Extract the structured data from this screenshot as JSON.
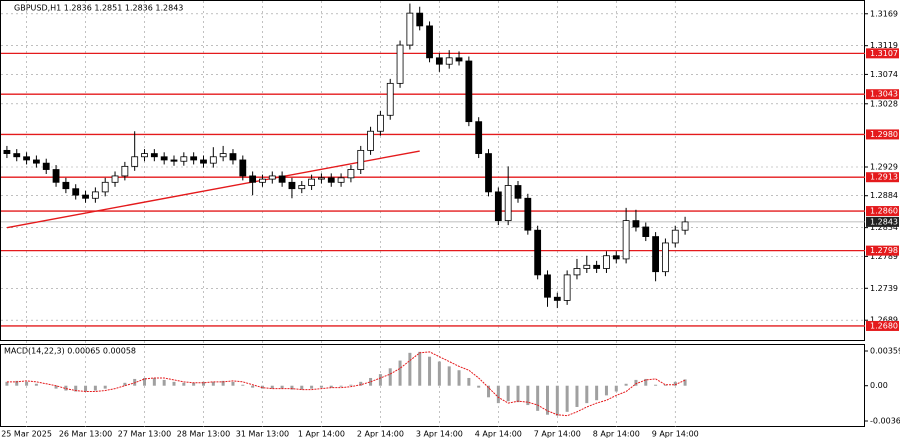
{
  "chart_data": [
    {
      "type": "candlestick",
      "title": "GBPUSD,H1  1.2836 1.2851 1.2836 1.2843",
      "categories": [
        null,
        null,
        "25 Mar 2025",
        null,
        null,
        null,
        null,
        null,
        "26 Mar 13:00",
        null,
        null,
        null,
        null,
        null,
        "27 Mar 13:00",
        null,
        null,
        null,
        null,
        null,
        "28 Mar 13:00",
        null,
        null,
        null,
        null,
        null,
        "31 Mar 13:00",
        null,
        null,
        null,
        null,
        null,
        "1 Apr 14:00",
        null,
        null,
        null,
        null,
        null,
        "2 Apr 14:00",
        null,
        null,
        null,
        null,
        null,
        "3 Apr 14:00",
        null,
        null,
        null,
        null,
        null,
        "4 Apr 14:00",
        null,
        null,
        null,
        null,
        null,
        "7 Apr 14:00",
        null,
        null,
        null,
        null,
        null,
        "8 Apr 14:00",
        null,
        null,
        null,
        null,
        null,
        "9 Apr 14:00",
        null
      ],
      "open": [
        1.2955,
        1.295,
        1.2945,
        1.294,
        1.2935,
        1.2925,
        1.2905,
        1.2895,
        1.2885,
        1.288,
        1.289,
        1.2905,
        1.2915,
        1.293,
        1.2945,
        1.295,
        1.2945,
        1.294,
        1.2938,
        1.2945,
        1.294,
        1.2935,
        1.2945,
        1.295,
        1.294,
        1.2915,
        1.2905,
        1.291,
        1.2915,
        1.2905,
        1.2895,
        1.29,
        1.291,
        1.2912,
        1.2905,
        1.2912,
        1.2925,
        1.2955,
        1.2985,
        1.301,
        1.306,
        1.312,
        1.317,
        1.315,
        1.31,
        1.309,
        1.31,
        1.3095,
        1.3,
        1.295,
        1.289,
        1.2845,
        1.29,
        1.288,
        1.283,
        1.276,
        1.2725,
        1.272,
        1.276,
        1.277,
        1.2775,
        1.277,
        1.279,
        1.2785,
        1.2845,
        1.2835,
        1.282,
        1.2765,
        1.281,
        1.283
      ],
      "high": [
        1.2962,
        1.2957,
        1.2952,
        1.2947,
        1.2942,
        1.2932,
        1.2912,
        1.2902,
        1.2892,
        1.2897,
        1.2912,
        1.2922,
        1.2937,
        1.2985,
        1.2957,
        1.2957,
        1.2952,
        1.2947,
        1.2952,
        1.2952,
        1.2947,
        1.296,
        1.2962,
        1.2957,
        1.2947,
        1.2922,
        1.2917,
        1.2922,
        1.2922,
        1.2912,
        1.2907,
        1.2917,
        1.2919,
        1.2919,
        1.2919,
        1.2932,
        1.2962,
        1.2992,
        1.3017,
        1.3067,
        1.3127,
        1.3185,
        1.318,
        1.3157,
        1.3107,
        1.3112,
        1.311,
        1.3102,
        1.3007,
        1.2957,
        1.2897,
        1.293,
        1.2907,
        1.2887,
        1.2837,
        1.2767,
        1.2732,
        1.2767,
        1.2785,
        1.279,
        1.2782,
        1.2797,
        1.2797,
        1.2865,
        1.2862,
        1.2842,
        1.2827,
        1.2817,
        1.2837,
        1.2851
      ],
      "low": [
        1.2943,
        1.2938,
        1.2933,
        1.2928,
        1.2918,
        1.2898,
        1.2888,
        1.2878,
        1.2873,
        1.2873,
        1.2883,
        1.2898,
        1.2908,
        1.2923,
        1.2938,
        1.2938,
        1.2933,
        1.2931,
        1.2931,
        1.2933,
        1.2928,
        1.2928,
        1.2938,
        1.2933,
        1.2908,
        1.2885,
        1.2898,
        1.2903,
        1.2898,
        1.288,
        1.2888,
        1.2893,
        1.2903,
        1.2898,
        1.2898,
        1.2905,
        1.2918,
        1.2948,
        1.2978,
        1.3003,
        1.3053,
        1.3113,
        1.3143,
        1.3093,
        1.3078,
        1.3083,
        1.3088,
        1.2993,
        1.2943,
        1.2883,
        1.2838,
        1.2838,
        1.2873,
        1.2823,
        1.2753,
        1.271,
        1.2708,
        1.2713,
        1.2753,
        1.2763,
        1.2763,
        1.2763,
        1.2778,
        1.2778,
        1.2828,
        1.2813,
        1.275,
        1.2758,
        1.2803,
        1.2823
      ],
      "close": [
        1.295,
        1.2945,
        1.294,
        1.2935,
        1.2925,
        1.2905,
        1.2895,
        1.2885,
        1.288,
        1.289,
        1.2905,
        1.2915,
        1.293,
        1.2945,
        1.295,
        1.2945,
        1.294,
        1.2938,
        1.2945,
        1.294,
        1.2935,
        1.2945,
        1.295,
        1.294,
        1.2915,
        1.2905,
        1.291,
        1.2915,
        1.2905,
        1.2895,
        1.29,
        1.291,
        1.2912,
        1.2905,
        1.2912,
        1.2925,
        1.2955,
        1.2985,
        1.301,
        1.306,
        1.312,
        1.317,
        1.315,
        1.31,
        1.309,
        1.31,
        1.3095,
        1.3,
        1.295,
        1.289,
        1.2845,
        1.29,
        1.288,
        1.283,
        1.276,
        1.2725,
        1.272,
        1.276,
        1.277,
        1.2775,
        1.277,
        1.279,
        1.2785,
        1.2845,
        1.2835,
        1.282,
        1.2765,
        1.281,
        1.283,
        1.2843
      ],
      "ylim": [
        1.2658,
        1.3189
      ],
      "yticks": [
        1.3169,
        1.3119,
        1.3074,
        1.3028,
        1.2929,
        1.2884,
        1.2834,
        1.2789,
        1.2739,
        1.2689
      ],
      "levels": [
        1.3107,
        1.3043,
        {
          "value": 1.298,
          "label": "1.2980"
        },
        1.2913,
        {
          "value": 1.286,
          "label": "1.2860"
        },
        1.2798,
        {
          "value": 1.268,
          "label": "1.2680"
        }
      ],
      "level_color": "#e41a1c",
      "current_price": 1.2843,
      "trendline": {
        "x": [
          0,
          42
        ],
        "y": [
          1.2834,
          1.2954
        ]
      },
      "grid": true
    },
    {
      "type": "macd",
      "title": "MACD(14,22,3) 0.00065 0.00058",
      "histogram": [
        0.0004,
        0.0005,
        0.0004,
        0.0002,
        0,
        -0.0003,
        -0.0005,
        -0.0006,
        -0.0006,
        -0.0005,
        -0.0003,
        0,
        0.0003,
        0.0007,
        0.0008,
        0.0008,
        0.0006,
        0.0004,
        0.0003,
        0.0003,
        0.0004,
        0.0004,
        0.0005,
        0.0004,
        0.0001,
        -0.0002,
        -0.0003,
        -0.0003,
        -0.0003,
        -0.0004,
        -0.0004,
        -0.0003,
        -0.0002,
        -0.0002,
        -0.0001,
        0.0001,
        0.0004,
        0.0008,
        0.0012,
        0.0018,
        0.0026,
        0.0034,
        0.0035,
        0.003,
        0.0025,
        0.002,
        0.0016,
        0.0008,
        -0.0002,
        -0.0012,
        -0.0018,
        -0.0016,
        -0.0017,
        -0.002,
        -0.0026,
        -0.003,
        -0.0031,
        -0.0027,
        -0.0022,
        -0.0018,
        -0.0015,
        -0.001,
        -0.0006,
        0.0002,
        0.0006,
        0.0007,
        0.0001,
        0.0001,
        0.0004,
        0.00065
      ],
      "signal": [
        0.0004,
        0.0004,
        0.0005,
        0.0004,
        0.0002,
        0,
        -0.0003,
        -0.0005,
        -0.0006,
        -0.0006,
        -0.0005,
        -0.0003,
        0,
        0.0003,
        0.0007,
        0.0008,
        0.0008,
        0.0006,
        0.0004,
        0.0003,
        0.0003,
        0.0004,
        0.0004,
        0.0005,
        0.0004,
        0.0001,
        -0.0002,
        -0.0003,
        -0.0003,
        -0.0003,
        -0.0004,
        -0.0004,
        -0.0003,
        -0.0002,
        -0.0002,
        -0.0001,
        0.0001,
        0.0004,
        0.0008,
        0.0012,
        0.0018,
        0.0026,
        0.0034,
        0.0035,
        0.003,
        0.0025,
        0.002,
        0.0016,
        0.0008,
        -0.0002,
        -0.0012,
        -0.0018,
        -0.0016,
        -0.0017,
        -0.002,
        -0.0026,
        -0.003,
        -0.0031,
        -0.0027,
        -0.0022,
        -0.0018,
        -0.0015,
        -0.001,
        -0.0006,
        0.0002,
        0.0006,
        0.0007,
        0.0001,
        0.0001,
        0.00058
      ],
      "histogram_color": "#a0a0a0",
      "signal_color": "#e41a1c",
      "ylim": [
        -0.00427,
        0.00421
      ],
      "yticks": [
        0.00359,
        {
          "value": 0,
          "label": "0.00"
        },
        -0.00365
      ]
    }
  ]
}
